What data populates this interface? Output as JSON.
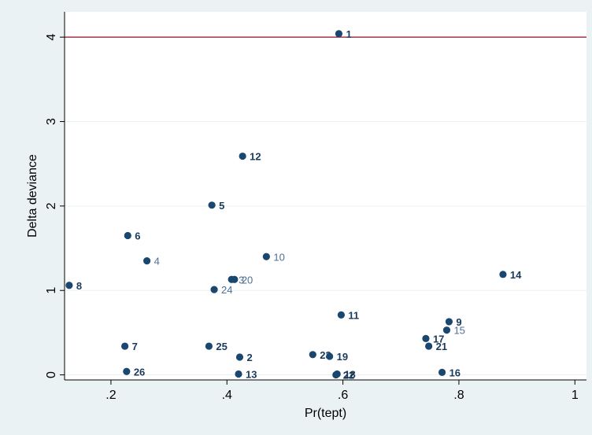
{
  "chart_data": {
    "type": "scatter",
    "xlabel": "Pr(tept)",
    "ylabel": "Delta deviance",
    "xlim": [
      0.12,
      1.02
    ],
    "ylim": [
      -0.06,
      4.3
    ],
    "xticks": [
      0.2,
      0.4,
      0.6,
      0.8,
      1
    ],
    "xtick_labels": [
      ".2",
      ".4",
      ".6",
      ".8",
      "1"
    ],
    "yticks": [
      0,
      1,
      2,
      3,
      4
    ],
    "ytick_labels": [
      "0",
      "1",
      "2",
      "3",
      "4"
    ],
    "grid": "horizontal",
    "reference_line": {
      "y": 4,
      "color": "#a0203c"
    },
    "marker_color": "#1a476f",
    "label_bold_color": "#1a3a5c",
    "label_light_color": "#4e6f93",
    "points": [
      {
        "label": "1",
        "x": 0.593,
        "y": 4.04,
        "bold": true
      },
      {
        "label": "12",
        "x": 0.427,
        "y": 2.59,
        "bold": true
      },
      {
        "label": "5",
        "x": 0.374,
        "y": 2.01,
        "bold": true
      },
      {
        "label": "6",
        "x": 0.229,
        "y": 1.65,
        "bold": true
      },
      {
        "label": "4",
        "x": 0.262,
        "y": 1.35,
        "bold": false
      },
      {
        "label": "10",
        "x": 0.468,
        "y": 1.4,
        "bold": false
      },
      {
        "label": "20",
        "x": 0.413,
        "y": 1.13,
        "bold": false
      },
      {
        "label": "3",
        "x": 0.408,
        "y": 1.13,
        "bold": false
      },
      {
        "label": "24",
        "x": 0.378,
        "y": 1.01,
        "bold": false
      },
      {
        "label": "8",
        "x": 0.128,
        "y": 1.06,
        "bold": true
      },
      {
        "label": "14",
        "x": 0.876,
        "y": 1.19,
        "bold": true
      },
      {
        "label": "11",
        "x": 0.597,
        "y": 0.71,
        "bold": true
      },
      {
        "label": "9",
        "x": 0.783,
        "y": 0.63,
        "bold": true
      },
      {
        "label": "15",
        "x": 0.779,
        "y": 0.53,
        "bold": false
      },
      {
        "label": "17",
        "x": 0.743,
        "y": 0.43,
        "bold": true
      },
      {
        "label": "21",
        "x": 0.748,
        "y": 0.34,
        "bold": true
      },
      {
        "label": "7",
        "x": 0.224,
        "y": 0.34,
        "bold": true
      },
      {
        "label": "25",
        "x": 0.369,
        "y": 0.34,
        "bold": true
      },
      {
        "label": "2",
        "x": 0.422,
        "y": 0.21,
        "bold": true
      },
      {
        "label": "23",
        "x": 0.548,
        "y": 0.24,
        "bold": true
      },
      {
        "label": "19",
        "x": 0.577,
        "y": 0.22,
        "bold": true
      },
      {
        "label": "26",
        "x": 0.227,
        "y": 0.04,
        "bold": true
      },
      {
        "label": "13",
        "x": 0.42,
        "y": 0.01,
        "bold": true
      },
      {
        "label": "18",
        "x": 0.59,
        "y": 0.01,
        "bold": true
      },
      {
        "label": "22",
        "x": 0.588,
        "y": 0.0,
        "bold": true
      },
      {
        "label": "16",
        "x": 0.771,
        "y": 0.03,
        "bold": true
      }
    ]
  }
}
